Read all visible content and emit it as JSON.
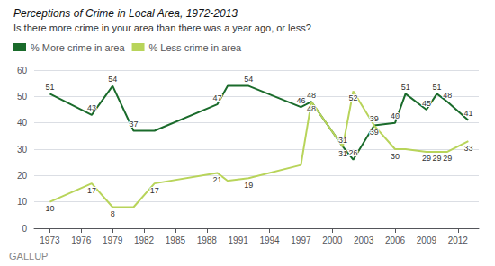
{
  "chart_data": {
    "type": "line",
    "title": "Perceptions of Crime in Local Area, 1972-2013",
    "subtitle": "Is there more crime in your area than there was a year ago, or less?",
    "annotation": "GALLUP",
    "x": [
      1973,
      1977,
      1979,
      1981,
      1983,
      1989,
      1990,
      1992,
      1997,
      1998,
      2001,
      2002,
      2004,
      2006,
      2007,
      2009,
      2010,
      2011,
      2013
    ],
    "series": [
      {
        "name": "% More crime in area",
        "color": "#1a6b2b",
        "data_labels": true,
        "values": [
          51,
          43,
          54,
          37,
          37,
          47,
          54,
          54,
          46,
          48,
          31,
          26,
          39,
          40,
          51,
          45,
          51,
          48,
          41
        ],
        "value_labels": [
          "51",
          "43",
          "54",
          "37",
          null,
          "47",
          null,
          "54",
          "46",
          "48",
          "31",
          "26",
          "39",
          "40",
          "51",
          "45",
          "51",
          "48",
          "41"
        ]
      },
      {
        "name": "% Less crime in area",
        "color": "#b8d45a",
        "data_labels": true,
        "values": [
          10,
          17,
          8,
          8,
          17,
          21,
          18,
          19,
          24,
          48,
          31,
          52,
          39,
          30,
          30,
          29,
          29,
          29,
          33
        ],
        "value_labels": [
          "10",
          "17",
          "8",
          null,
          "17",
          "21",
          null,
          "19",
          null,
          "48",
          "31",
          "52",
          "39",
          "30",
          null,
          "29",
          "29",
          "29",
          "33"
        ]
      }
    ],
    "xlim": [
      1971.5,
      2014.0
    ],
    "xticks": [
      1973,
      1976,
      1979,
      1982,
      1985,
      1988,
      1991,
      1994,
      1997,
      2000,
      2003,
      2006,
      2009,
      2012
    ],
    "ylim": [
      0,
      60
    ],
    "yticks": [
      0,
      10,
      20,
      30,
      40,
      50,
      60
    ],
    "grid": true,
    "legend": "upper left"
  }
}
